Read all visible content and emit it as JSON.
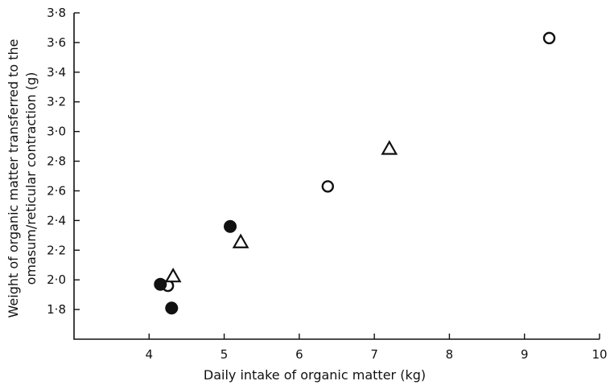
{
  "chart_data": {
    "type": "scatter",
    "title": "",
    "xlabel": "Daily intake of organic matter (kg)",
    "ylabel_lines": [
      "Weight of organic matter transferred to the",
      "omasum/reticular contraction (g)"
    ],
    "xlim": [
      3,
      10
    ],
    "ylim": [
      1.6,
      3.8
    ],
    "x_ticks": [
      4,
      5,
      6,
      7,
      8,
      9,
      10
    ],
    "x_tick_labels": [
      "4",
      "5",
      "6",
      "7",
      "8",
      "9",
      "10"
    ],
    "y_ticks": [
      1.8,
      2.0,
      2.2,
      2.4,
      2.6,
      2.8,
      3.0,
      3.2,
      3.4,
      3.6,
      3.8
    ],
    "y_tick_labels": [
      "1·8",
      "2·0",
      "2·2",
      "2·4",
      "2·6",
      "2·8",
      "3·0",
      "3·2",
      "3·4",
      "3·6",
      "3·8"
    ],
    "grid": false,
    "series": [
      {
        "marker": "open-circle",
        "points": [
          [
            4.25,
            1.96
          ],
          [
            6.38,
            2.63
          ],
          [
            9.33,
            3.63
          ]
        ]
      },
      {
        "marker": "filled-circle",
        "points": [
          [
            4.15,
            1.97
          ],
          [
            4.3,
            1.81
          ],
          [
            5.08,
            2.36
          ]
        ]
      },
      {
        "marker": "open-triangle",
        "points": [
          [
            4.32,
            2.02
          ],
          [
            5.22,
            2.25
          ],
          [
            7.2,
            2.88
          ]
        ]
      }
    ]
  }
}
